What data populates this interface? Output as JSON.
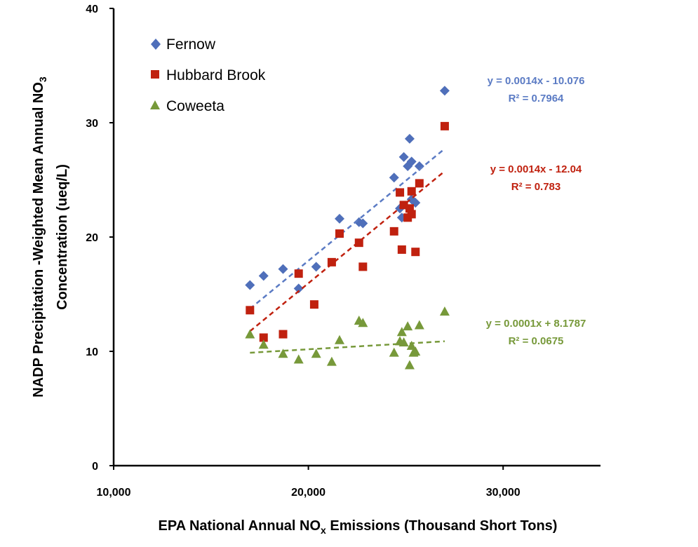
{
  "chart_data": {
    "type": "scatter",
    "xlabel_parts": [
      "EPA National Annual NO",
      "x",
      " Emissions (Thousand Short Tons)"
    ],
    "ylabel_line1_parts": [
      "NADP Precipitation -Weighted Mean Annual NO",
      "3"
    ],
    "ylabel_line2": "Concentration (ueq/L)",
    "xlim": [
      10000,
      35000
    ],
    "ylim": [
      0,
      40
    ],
    "x_ticks": [
      10000,
      20000,
      30000
    ],
    "x_tick_labels": [
      "10,000",
      "20,000",
      "30,000"
    ],
    "y_ticks": [
      0,
      10,
      20,
      30,
      40
    ],
    "y_tick_labels": [
      "0",
      "10",
      "20",
      "30",
      "40"
    ],
    "grid": false,
    "legend_position": "top-left",
    "series": [
      {
        "name": "Fernow",
        "marker": "diamond",
        "color": "#4F6FBA",
        "trend_color": "#5B7BC4",
        "equation": "y = 0.0014x - 10.076",
        "r2": "R² = 0.7964",
        "trend": {
          "slope": 0.0014,
          "intercept": -10.076,
          "x_range": [
            17000,
            27000
          ]
        },
        "x": [
          17000,
          17700,
          18700,
          19500,
          20400,
          21600,
          22600,
          22800,
          24400,
          24700,
          24800,
          24900,
          25100,
          25200,
          25300,
          25300,
          25500,
          25700,
          27000
        ],
        "y": [
          15.8,
          16.6,
          17.2,
          15.5,
          17.4,
          21.6,
          21.3,
          21.2,
          25.2,
          22.5,
          21.7,
          27.0,
          26.2,
          28.6,
          26.6,
          23.3,
          23.0,
          26.2,
          32.8
        ]
      },
      {
        "name": "Hubbard Brook",
        "marker": "square",
        "color": "#C0210F",
        "trend_color": "#C0210F",
        "equation": "y = 0.0014x - 12.04",
        "r2": "R² = 0.783",
        "trend": {
          "slope": 0.0014,
          "intercept": -12.04,
          "x_range": [
            17000,
            27000
          ]
        },
        "x": [
          17000,
          17700,
          18700,
          19500,
          20300,
          21200,
          21600,
          22600,
          22800,
          24400,
          24700,
          24800,
          24900,
          25100,
          25200,
          25300,
          25300,
          25500,
          25700,
          27000
        ],
        "y": [
          13.6,
          11.2,
          11.5,
          16.8,
          14.1,
          17.8,
          20.3,
          19.5,
          17.4,
          20.5,
          23.9,
          18.9,
          22.8,
          21.7,
          22.5,
          24.0,
          22.0,
          18.7,
          24.7,
          29.7
        ]
      },
      {
        "name": "Coweeta",
        "marker": "triangle",
        "color": "#77993A",
        "trend_color": "#77993A",
        "equation": "y = 0.0001x + 8.1787",
        "r2": "R² = 0.0675",
        "trend": {
          "slope": 0.0001,
          "intercept": 8.1787,
          "x_range": [
            17000,
            27000
          ]
        },
        "x": [
          17000,
          17700,
          18700,
          19500,
          20400,
          21200,
          21600,
          22600,
          22800,
          24400,
          24700,
          24800,
          24900,
          25100,
          25200,
          25300,
          25400,
          25500,
          25700,
          27000
        ],
        "y": [
          11.5,
          10.6,
          9.8,
          9.3,
          9.8,
          9.1,
          11.0,
          12.7,
          12.5,
          9.9,
          10.9,
          11.7,
          10.8,
          12.2,
          8.8,
          10.5,
          9.9,
          10.0,
          12.3,
          13.5
        ]
      }
    ]
  }
}
